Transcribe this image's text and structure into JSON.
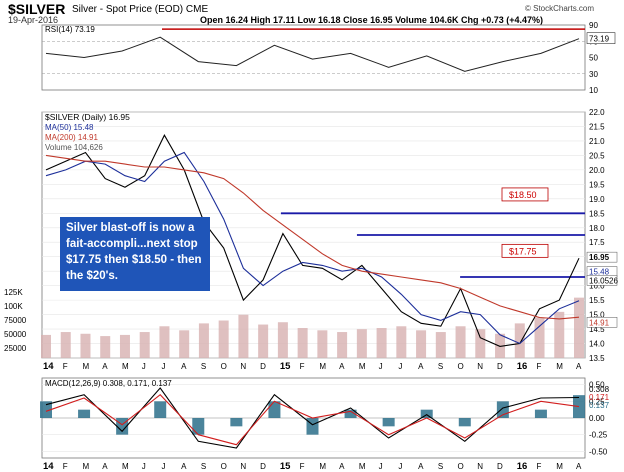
{
  "header": {
    "symbol": "$SILVER",
    "subtitle": "Silver - Spot Price (EOD)  CME",
    "date": "19-Apr-2016",
    "ohlc": "Open 16.24  High 17.11  Low 16.18  Close 16.95  Volume 104.6K  Chg +0.73 (+4.47%)",
    "brand": "© StockCharts.com"
  },
  "annotation": {
    "text": "Silver blast-off is now a fait-accompli...next stop $17.75 then $18.50 - then the $20's."
  },
  "callouts": [
    "$18.50",
    "$17.75"
  ],
  "colors": {
    "price": "#000000",
    "ma50": "#1d2f9a",
    "ma200": "#c0392b",
    "resistance": "#1a1aa8",
    "rsi_ob": "#c00000",
    "volume": "#d7b0b0",
    "macd_hist": "#2b6f8a",
    "annotation_bg": "#1f55b8"
  },
  "chart_data": [
    {
      "type": "line",
      "title": "RSI(14) 73.19",
      "ylim": [
        10,
        90
      ],
      "ticks": [
        "90",
        "70",
        "50",
        "30",
        "10"
      ],
      "overbought": 70,
      "oversold": 30,
      "last_value": "73.19",
      "x": [
        "2014-01",
        "2014-03",
        "2014-05",
        "2014-07",
        "2014-09",
        "2014-11",
        "2015-01",
        "2015-03",
        "2015-05",
        "2015-07",
        "2015-09",
        "2015-11",
        "2016-01",
        "2016-03",
        "2016-04"
      ],
      "series": [
        {
          "values": [
            55,
            50,
            58,
            75,
            45,
            40,
            65,
            48,
            55,
            38,
            52,
            33,
            45,
            55,
            73.19
          ]
        }
      ]
    },
    {
      "type": "line",
      "title": "$SILVER (Daily) 16.95",
      "ylim": [
        13.5,
        22.0
      ],
      "ticks": [
        "22.0",
        "21.5",
        "21.0",
        "20.5",
        "20.0",
        "19.5",
        "19.0",
        "18.5",
        "18.0",
        "17.5",
        "17.0",
        "16.5",
        "16.0",
        "15.5",
        "15.0",
        "14.5",
        "14.0",
        "13.5"
      ],
      "x_ticks": [
        "14",
        "F",
        "M",
        "A",
        "M",
        "J",
        "J",
        "A",
        "S",
        "O",
        "N",
        "D",
        "15",
        "F",
        "M",
        "A",
        "M",
        "J",
        "J",
        "A",
        "S",
        "O",
        "N",
        "D",
        "16",
        "F",
        "M",
        "A"
      ],
      "x": [
        "2014-01",
        "2014-02",
        "2014-03",
        "2014-04",
        "2014-05",
        "2014-06",
        "2014-07",
        "2014-08",
        "2014-09",
        "2014-10",
        "2014-11",
        "2014-12",
        "2015-01",
        "2015-02",
        "2015-03",
        "2015-04",
        "2015-05",
        "2015-06",
        "2015-07",
        "2015-08",
        "2015-09",
        "2015-10",
        "2015-11",
        "2015-12",
        "2016-01",
        "2016-02",
        "2016-03",
        "2016-04"
      ],
      "series": [
        {
          "name": "$SILVER",
          "values": [
            20.0,
            20.3,
            20.6,
            19.7,
            19.4,
            19.8,
            21.2,
            20.0,
            18.2,
            17.3,
            15.5,
            16.2,
            17.8,
            16.7,
            16.6,
            16.2,
            16.7,
            15.9,
            15.1,
            14.7,
            14.6,
            15.9,
            14.2,
            13.9,
            14.0,
            15.2,
            15.5,
            16.95
          ]
        },
        {
          "name": "MA(50) 15.48",
          "values": [
            19.8,
            20.0,
            20.3,
            20.2,
            19.8,
            19.6,
            20.3,
            20.6,
            19.6,
            18.3,
            16.6,
            16.0,
            16.5,
            16.8,
            16.7,
            16.5,
            16.6,
            16.3,
            15.7,
            15.0,
            14.8,
            15.1,
            15.0,
            14.3,
            14.0,
            14.6,
            15.2,
            15.48
          ]
        },
        {
          "name": "MA(200) 14.91",
          "values": [
            20.5,
            20.4,
            20.3,
            20.3,
            20.2,
            20.1,
            20.1,
            20.0,
            19.9,
            19.7,
            19.2,
            18.6,
            18.1,
            17.6,
            17.1,
            16.7,
            16.5,
            16.4,
            16.3,
            16.2,
            16.1,
            15.9,
            15.6,
            15.3,
            15.1,
            14.9,
            14.85,
            14.91
          ]
        },
        {
          "name": "Volume 104,626",
          "values": [
            40000,
            45000,
            42000,
            38000,
            40000,
            45000,
            55000,
            48000,
            60000,
            65000,
            75000,
            58000,
            62000,
            52000,
            48000,
            45000,
            50000,
            52000,
            55000,
            48000,
            45000,
            55000,
            50000,
            42000,
            60000,
            70000,
            80000,
            104626
          ]
        }
      ],
      "volume_ticks": [
        "125K",
        "100K",
        "75000",
        "50000",
        "25000"
      ],
      "resistance_levels": [
        18.5,
        17.75,
        16.3
      ],
      "right_labels": [
        "16.95",
        "15.48",
        "16.0526",
        "14.91"
      ]
    },
    {
      "type": "line",
      "title": "MACD(12,26,9) 0.308, 0.171, 0.137",
      "ylim": [
        -0.6,
        0.6
      ],
      "ticks": [
        "0.50",
        "0.25",
        "0.00",
        "-0.25",
        "-0.50"
      ],
      "x": [
        "2014-01",
        "2014-03",
        "2014-05",
        "2014-07",
        "2014-09",
        "2014-11",
        "2015-01",
        "2015-03",
        "2015-05",
        "2015-07",
        "2015-09",
        "2015-11",
        "2016-01",
        "2016-03",
        "2016-04"
      ],
      "series": [
        {
          "name": "MACD",
          "values": [
            0.2,
            0.35,
            -0.2,
            0.45,
            -0.35,
            -0.45,
            0.35,
            -0.1,
            0.15,
            -0.3,
            0.05,
            -0.35,
            0.15,
            0.3,
            0.308
          ]
        },
        {
          "name": "Signal",
          "values": [
            0.1,
            0.3,
            -0.1,
            0.35,
            -0.25,
            -0.4,
            0.25,
            0.0,
            0.1,
            -0.25,
            0.0,
            -0.3,
            0.05,
            0.25,
            0.171
          ]
        }
      ],
      "right_labels": [
        "0.308",
        "0.171",
        "0.137"
      ]
    }
  ]
}
